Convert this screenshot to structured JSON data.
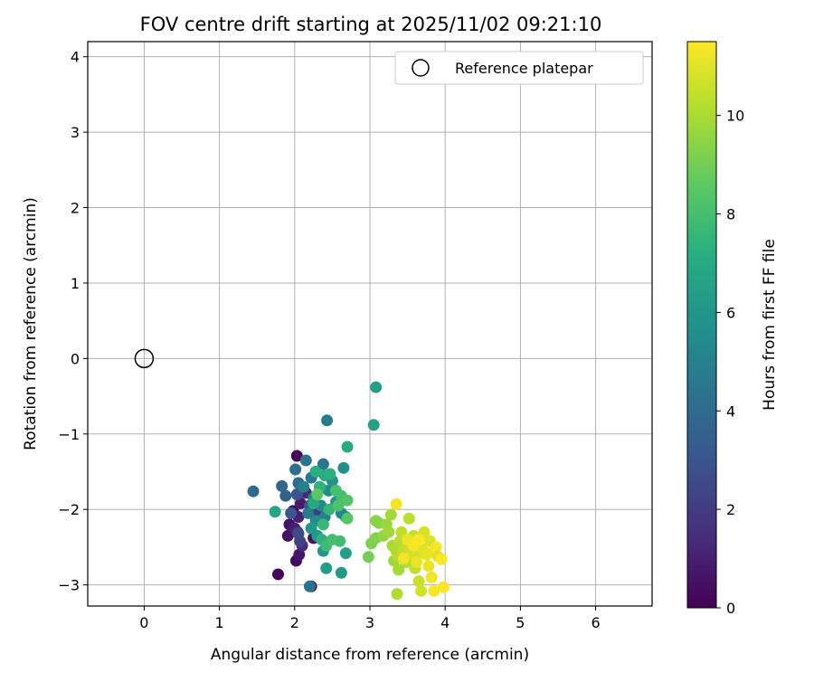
{
  "chart_data": {
    "type": "scatter",
    "title": "FOV centre drift starting at 2025/11/02 09:21:10",
    "xlabel": "Angular distance from reference (arcmin)",
    "ylabel": "Rotation from reference (arcmin)",
    "xlim": [
      -0.75,
      6.75
    ],
    "ylim": [
      -3.28,
      4.2
    ],
    "xticks": [
      0,
      1,
      2,
      3,
      4,
      5,
      6
    ],
    "yticks": [
      -3,
      -2,
      -1,
      0,
      1,
      2,
      3,
      4
    ],
    "xtick_labels": [
      "0",
      "1",
      "2",
      "3",
      "4",
      "5",
      "6"
    ],
    "ytick_labels": [
      "−3",
      "−2",
      "−1",
      "0",
      "1",
      "2",
      "3",
      "4"
    ],
    "grid": true,
    "legend": {
      "placement": "top-right",
      "entries": [
        "Reference platepar"
      ]
    },
    "reference": {
      "label": "Reference platepar",
      "x": 0,
      "y": 0,
      "marker": "open-circle"
    },
    "colorbar": {
      "label": "Hours from first FF file",
      "colormap": "viridis",
      "range": [
        0,
        11.5
      ],
      "ticks": [
        0,
        2,
        4,
        6,
        8,
        10
      ],
      "tick_labels": [
        "0",
        "2",
        "4",
        "6",
        "8",
        "10"
      ]
    },
    "points": [
      {
        "x": 2.03,
        "y": -1.29,
        "hours": 0.2
      },
      {
        "x": 1.98,
        "y": -2.02,
        "hours": 0.4
      },
      {
        "x": 1.93,
        "y": -2.2,
        "hours": 0.6
      },
      {
        "x": 1.91,
        "y": -2.35,
        "hours": 0.5
      },
      {
        "x": 1.78,
        "y": -2.86,
        "hours": 0.2
      },
      {
        "x": 2.02,
        "y": -2.68,
        "hours": 0.3
      },
      {
        "x": 2.06,
        "y": -2.6,
        "hours": 0.7
      },
      {
        "x": 2.08,
        "y": -1.92,
        "hours": 0.9
      },
      {
        "x": 2.05,
        "y": -2.1,
        "hours": 1.1
      },
      {
        "x": 2.0,
        "y": -2.25,
        "hours": 1.0
      },
      {
        "x": 2.22,
        "y": -3.02,
        "hours": 0.8
      },
      {
        "x": 2.25,
        "y": -2.38,
        "hours": 0.6
      },
      {
        "x": 2.1,
        "y": -2.48,
        "hours": 1.4
      },
      {
        "x": 2.04,
        "y": -2.3,
        "hours": 1.6
      },
      {
        "x": 2.15,
        "y": -1.78,
        "hours": 1.3
      },
      {
        "x": 2.3,
        "y": -2.05,
        "hours": 1.8
      },
      {
        "x": 2.07,
        "y": -2.42,
        "hours": 2.2
      },
      {
        "x": 2.05,
        "y": -2.32,
        "hours": 2.6
      },
      {
        "x": 2.03,
        "y": -1.8,
        "hours": 3.0
      },
      {
        "x": 1.95,
        "y": -2.05,
        "hours": 3.2
      },
      {
        "x": 2.2,
        "y": -1.95,
        "hours": 2.8
      },
      {
        "x": 1.45,
        "y": -1.76,
        "hours": 4.0
      },
      {
        "x": 1.83,
        "y": -1.69,
        "hours": 3.8
      },
      {
        "x": 1.88,
        "y": -1.82,
        "hours": 3.5
      },
      {
        "x": 2.01,
        "y": -1.47,
        "hours": 4.2
      },
      {
        "x": 2.05,
        "y": -1.65,
        "hours": 4.1
      },
      {
        "x": 2.15,
        "y": -1.35,
        "hours": 4.3
      },
      {
        "x": 2.22,
        "y": -1.58,
        "hours": 4.6
      },
      {
        "x": 2.28,
        "y": -1.5,
        "hours": 4.9
      },
      {
        "x": 2.38,
        "y": -1.4,
        "hours": 4.5
      },
      {
        "x": 2.43,
        "y": -0.82,
        "hours": 4.8
      },
      {
        "x": 2.2,
        "y": -3.02,
        "hours": 4.4
      },
      {
        "x": 2.12,
        "y": -1.7,
        "hours": 5.0
      },
      {
        "x": 2.25,
        "y": -1.85,
        "hours": 5.2
      },
      {
        "x": 2.35,
        "y": -1.95,
        "hours": 5.4
      },
      {
        "x": 2.4,
        "y": -2.1,
        "hours": 5.0
      },
      {
        "x": 2.28,
        "y": -2.15,
        "hours": 5.5
      },
      {
        "x": 2.18,
        "y": -2.05,
        "hours": 4.7
      },
      {
        "x": 2.45,
        "y": -1.75,
        "hours": 5.6
      },
      {
        "x": 2.5,
        "y": -1.62,
        "hours": 5.8
      },
      {
        "x": 2.65,
        "y": -1.45,
        "hours": 5.7
      },
      {
        "x": 2.62,
        "y": -2.05,
        "hours": 5.3
      },
      {
        "x": 2.68,
        "y": -2.1,
        "hours": 5.1
      },
      {
        "x": 2.55,
        "y": -1.9,
        "hours": 5.9
      },
      {
        "x": 2.35,
        "y": -1.72,
        "hours": 6.0
      },
      {
        "x": 2.22,
        "y": -2.25,
        "hours": 6.1
      },
      {
        "x": 2.3,
        "y": -2.35,
        "hours": 6.2
      },
      {
        "x": 2.38,
        "y": -2.55,
        "hours": 6.0
      },
      {
        "x": 2.42,
        "y": -2.78,
        "hours": 6.3
      },
      {
        "x": 2.62,
        "y": -2.84,
        "hours": 6.2
      },
      {
        "x": 2.68,
        "y": -2.58,
        "hours": 6.4
      },
      {
        "x": 3.08,
        "y": -0.38,
        "hours": 6.4
      },
      {
        "x": 3.05,
        "y": -0.88,
        "hours": 6.6
      },
      {
        "x": 2.7,
        "y": -1.17,
        "hours": 7.0
      },
      {
        "x": 1.74,
        "y": -2.03,
        "hours": 6.8
      },
      {
        "x": 2.25,
        "y": -1.92,
        "hours": 7.0
      },
      {
        "x": 2.28,
        "y": -1.5,
        "hours": 7.2
      },
      {
        "x": 2.4,
        "y": -1.55,
        "hours": 7.0
      },
      {
        "x": 2.47,
        "y": -1.53,
        "hours": 7.3
      },
      {
        "x": 2.33,
        "y": -1.7,
        "hours": 7.4
      },
      {
        "x": 2.46,
        "y": -2.0,
        "hours": 7.5
      },
      {
        "x": 2.38,
        "y": -2.2,
        "hours": 7.6
      },
      {
        "x": 2.36,
        "y": -2.4,
        "hours": 7.3
      },
      {
        "x": 2.42,
        "y": -2.48,
        "hours": 7.8
      },
      {
        "x": 2.5,
        "y": -2.4,
        "hours": 8.0
      },
      {
        "x": 2.6,
        "y": -2.42,
        "hours": 7.9
      },
      {
        "x": 2.55,
        "y": -1.75,
        "hours": 8.1
      },
      {
        "x": 2.62,
        "y": -1.82,
        "hours": 8.0
      },
      {
        "x": 2.7,
        "y": -1.88,
        "hours": 8.3
      },
      {
        "x": 2.58,
        "y": -1.95,
        "hours": 8.2
      },
      {
        "x": 2.7,
        "y": -2.12,
        "hours": 8.4
      },
      {
        "x": 2.3,
        "y": -1.8,
        "hours": 8.5
      },
      {
        "x": 2.98,
        "y": -2.63,
        "hours": 9.0
      },
      {
        "x": 3.02,
        "y": -2.45,
        "hours": 9.2
      },
      {
        "x": 3.08,
        "y": -2.38,
        "hours": 9.3
      },
      {
        "x": 3.08,
        "y": -2.15,
        "hours": 9.5
      },
      {
        "x": 3.12,
        "y": -2.18,
        "hours": 9.4
      },
      {
        "x": 3.18,
        "y": -2.35,
        "hours": 9.6
      },
      {
        "x": 3.22,
        "y": -2.2,
        "hours": 9.7
      },
      {
        "x": 3.25,
        "y": -2.3,
        "hours": 9.8
      },
      {
        "x": 3.28,
        "y": -2.07,
        "hours": 9.9
      },
      {
        "x": 3.3,
        "y": -2.48,
        "hours": 10.0
      },
      {
        "x": 3.32,
        "y": -2.68,
        "hours": 9.8
      },
      {
        "x": 3.35,
        "y": -2.55,
        "hours": 10.1
      },
      {
        "x": 3.38,
        "y": -2.62,
        "hours": 10.2
      },
      {
        "x": 3.38,
        "y": -2.8,
        "hours": 9.9
      },
      {
        "x": 3.36,
        "y": -3.12,
        "hours": 10.1
      },
      {
        "x": 3.4,
        "y": -2.42,
        "hours": 10.3
      },
      {
        "x": 3.42,
        "y": -2.3,
        "hours": 10.4
      },
      {
        "x": 3.45,
        "y": -2.55,
        "hours": 10.5
      },
      {
        "x": 3.48,
        "y": -2.7,
        "hours": 10.2
      },
      {
        "x": 3.5,
        "y": -2.45,
        "hours": 10.6
      },
      {
        "x": 3.52,
        "y": -2.12,
        "hours": 10.3
      },
      {
        "x": 3.55,
        "y": -2.58,
        "hours": 10.7
      },
      {
        "x": 3.58,
        "y": -2.35,
        "hours": 10.5
      },
      {
        "x": 3.6,
        "y": -2.78,
        "hours": 10.4
      },
      {
        "x": 3.62,
        "y": -2.62,
        "hours": 10.8
      },
      {
        "x": 3.65,
        "y": -2.95,
        "hours": 10.6
      },
      {
        "x": 3.68,
        "y": -3.08,
        "hours": 10.7
      },
      {
        "x": 3.7,
        "y": -2.52,
        "hours": 11.0
      },
      {
        "x": 3.72,
        "y": -2.3,
        "hours": 10.8
      },
      {
        "x": 3.75,
        "y": -2.6,
        "hours": 11.1
      },
      {
        "x": 3.78,
        "y": -2.75,
        "hours": 11.2
      },
      {
        "x": 3.8,
        "y": -2.42,
        "hours": 10.9
      },
      {
        "x": 3.82,
        "y": -2.9,
        "hours": 11.3
      },
      {
        "x": 3.85,
        "y": -2.55,
        "hours": 11.1
      },
      {
        "x": 3.88,
        "y": -2.5,
        "hours": 11.4
      },
      {
        "x": 3.9,
        "y": -2.62,
        "hours": 11.0
      },
      {
        "x": 3.95,
        "y": -2.66,
        "hours": 11.5
      },
      {
        "x": 3.98,
        "y": -3.03,
        "hours": 11.5
      },
      {
        "x": 3.85,
        "y": -3.08,
        "hours": 11.4
      },
      {
        "x": 3.35,
        "y": -1.93,
        "hours": 11.3
      },
      {
        "x": 3.5,
        "y": -2.4,
        "hours": 11.2
      },
      {
        "x": 3.58,
        "y": -2.48,
        "hours": 11.4
      },
      {
        "x": 3.65,
        "y": -2.4,
        "hours": 11.5
      },
      {
        "x": 3.45,
        "y": -2.65,
        "hours": 11.3
      },
      {
        "x": 3.62,
        "y": -2.7,
        "hours": 11.2
      }
    ]
  }
}
